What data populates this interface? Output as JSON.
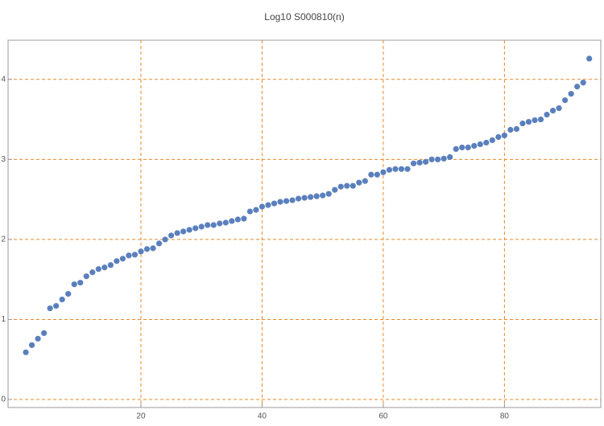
{
  "chart_data": {
    "type": "scatter",
    "title": "Log10 S000810(n)",
    "x": [
      1,
      2,
      3,
      4,
      5,
      6,
      7,
      8,
      9,
      10,
      11,
      12,
      13,
      14,
      15,
      16,
      17,
      18,
      19,
      20,
      21,
      22,
      23,
      24,
      25,
      26,
      27,
      28,
      29,
      30,
      31,
      32,
      33,
      34,
      35,
      36,
      37,
      38,
      39,
      40,
      41,
      42,
      43,
      44,
      45,
      46,
      47,
      48,
      49,
      50,
      51,
      52,
      53,
      54,
      55,
      56,
      57,
      58,
      59,
      60,
      61,
      62,
      63,
      64,
      65,
      66,
      67,
      68,
      69,
      70,
      71,
      72,
      73,
      74,
      75,
      76,
      77,
      78,
      79,
      80,
      81,
      82,
      83,
      84,
      85,
      86,
      87,
      88,
      89,
      90,
      91,
      92,
      93,
      94
    ],
    "values": [
      0.59,
      0.68,
      0.76,
      0.83,
      1.14,
      1.17,
      1.25,
      1.32,
      1.44,
      1.46,
      1.54,
      1.59,
      1.63,
      1.65,
      1.68,
      1.73,
      1.76,
      1.8,
      1.81,
      1.85,
      1.88,
      1.89,
      1.95,
      2.0,
      2.05,
      2.08,
      2.1,
      2.12,
      2.14,
      2.16,
      2.18,
      2.18,
      2.2,
      2.21,
      2.23,
      2.25,
      2.26,
      2.35,
      2.37,
      2.41,
      2.43,
      2.45,
      2.47,
      2.48,
      2.49,
      2.51,
      2.52,
      2.53,
      2.54,
      2.55,
      2.57,
      2.62,
      2.66,
      2.67,
      2.67,
      2.71,
      2.73,
      2.81,
      2.81,
      2.84,
      2.87,
      2.88,
      2.88,
      2.88,
      2.95,
      2.96,
      2.97,
      3.0,
      3.0,
      3.01,
      3.03,
      3.13,
      3.15,
      3.15,
      3.17,
      3.19,
      3.21,
      3.24,
      3.28,
      3.3,
      3.37,
      3.38,
      3.45,
      3.47,
      3.49,
      3.5,
      3.56,
      3.61,
      3.64,
      3.74,
      3.82,
      3.91,
      3.96,
      4.26
    ],
    "color": "#5a7fbd",
    "xlim": [
      -1.93,
      95.9
    ],
    "ylim": [
      -0.1,
      4.49
    ],
    "xticks": [
      20,
      40,
      60,
      80
    ],
    "yticks": [
      0,
      1,
      2,
      3,
      4
    ],
    "grid": true,
    "grid_color": "#e8892a"
  }
}
